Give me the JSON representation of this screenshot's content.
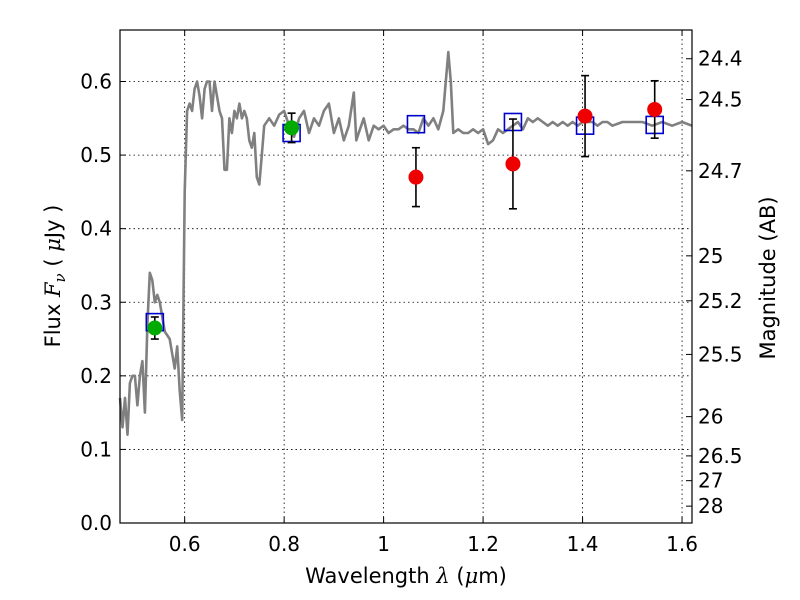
{
  "chart_data": {
    "type": "scatter",
    "xlabel_prefix": "Wavelength",
    "xlabel_symbol": "λ",
    "xlabel_unit_open": " (",
    "xlabel_unit_mu": "μ",
    "xlabel_unit_close": "m)",
    "ylabel_prefix": "Flux",
    "ylabel_symbol_F": "F",
    "ylabel_symbol_nu": "ν",
    "ylabel_unit_open": " ( ",
    "ylabel_unit_mu": "μ",
    "ylabel_unit_close": "Jy )",
    "y2label": "Magnitude (AB)",
    "xlim": [
      0.47,
      1.62
    ],
    "ylim": [
      0.0,
      0.67
    ],
    "x_ticks": [
      0.6,
      0.8,
      1.0,
      1.2,
      1.4,
      1.6
    ],
    "x_tick_labels": [
      "0.6",
      "0.8",
      "1",
      "1.2",
      "1.4",
      "1.6"
    ],
    "y_ticks": [
      0.0,
      0.1,
      0.2,
      0.3,
      0.4,
      0.5,
      0.6
    ],
    "y_tick_labels": [
      "0.0",
      "0.1",
      "0.2",
      "0.3",
      "0.4",
      "0.5",
      "0.6"
    ],
    "mag_ticks": [
      "24.4",
      "24.5",
      "24.7",
      "25",
      "25.2",
      "25.5",
      "26",
      "26.5",
      "27",
      "28"
    ],
    "grid": true,
    "colors": {
      "spectrum": "#808080",
      "model": "#0000cc",
      "observed_blue": "#00aa00",
      "observed_red": "#ee0000",
      "errorbar": "#000000"
    },
    "series": [
      {
        "name": "model spectrum",
        "kind": "line",
        "points": [
          [
            0.47,
            0.17
          ],
          [
            0.475,
            0.13
          ],
          [
            0.48,
            0.17
          ],
          [
            0.485,
            0.12
          ],
          [
            0.49,
            0.19
          ],
          [
            0.495,
            0.2
          ],
          [
            0.5,
            0.2
          ],
          [
            0.505,
            0.16
          ],
          [
            0.51,
            0.2
          ],
          [
            0.515,
            0.22
          ],
          [
            0.52,
            0.15
          ],
          [
            0.525,
            0.27
          ],
          [
            0.53,
            0.34
          ],
          [
            0.535,
            0.33
          ],
          [
            0.54,
            0.3
          ],
          [
            0.545,
            0.31
          ],
          [
            0.55,
            0.3
          ],
          [
            0.555,
            0.28
          ],
          [
            0.56,
            0.26
          ],
          [
            0.565,
            0.255
          ],
          [
            0.57,
            0.25
          ],
          [
            0.575,
            0.23
          ],
          [
            0.58,
            0.21
          ],
          [
            0.585,
            0.24
          ],
          [
            0.59,
            0.18
          ],
          [
            0.595,
            0.14
          ],
          [
            0.6,
            0.45
          ],
          [
            0.605,
            0.56
          ],
          [
            0.61,
            0.57
          ],
          [
            0.615,
            0.56
          ],
          [
            0.62,
            0.59
          ],
          [
            0.625,
            0.6
          ],
          [
            0.63,
            0.58
          ],
          [
            0.635,
            0.55
          ],
          [
            0.64,
            0.59
          ],
          [
            0.645,
            0.6
          ],
          [
            0.65,
            0.6
          ],
          [
            0.655,
            0.56
          ],
          [
            0.66,
            0.6
          ],
          [
            0.665,
            0.58
          ],
          [
            0.67,
            0.56
          ],
          [
            0.675,
            0.55
          ],
          [
            0.68,
            0.48
          ],
          [
            0.685,
            0.48
          ],
          [
            0.69,
            0.55
          ],
          [
            0.695,
            0.53
          ],
          [
            0.7,
            0.56
          ],
          [
            0.705,
            0.55
          ],
          [
            0.71,
            0.57
          ],
          [
            0.715,
            0.55
          ],
          [
            0.72,
            0.56
          ],
          [
            0.725,
            0.55
          ],
          [
            0.73,
            0.52
          ],
          [
            0.735,
            0.51
          ],
          [
            0.74,
            0.53
          ],
          [
            0.745,
            0.47
          ],
          [
            0.75,
            0.46
          ],
          [
            0.755,
            0.5
          ],
          [
            0.76,
            0.54
          ],
          [
            0.77,
            0.55
          ],
          [
            0.78,
            0.54
          ],
          [
            0.79,
            0.555
          ],
          [
            0.8,
            0.56
          ],
          [
            0.81,
            0.54
          ],
          [
            0.82,
            0.525
          ],
          [
            0.83,
            0.55
          ],
          [
            0.84,
            0.56
          ],
          [
            0.85,
            0.53
          ],
          [
            0.86,
            0.55
          ],
          [
            0.87,
            0.54
          ],
          [
            0.88,
            0.56
          ],
          [
            0.89,
            0.57
          ],
          [
            0.9,
            0.53
          ],
          [
            0.91,
            0.55
          ],
          [
            0.92,
            0.52
          ],
          [
            0.93,
            0.54
          ],
          [
            0.94,
            0.585
          ],
          [
            0.945,
            0.52
          ],
          [
            0.95,
            0.53
          ],
          [
            0.96,
            0.55
          ],
          [
            0.97,
            0.52
          ],
          [
            0.98,
            0.54
          ],
          [
            0.99,
            0.535
          ],
          [
            1.0,
            0.54
          ],
          [
            1.01,
            0.53
          ],
          [
            1.02,
            0.535
          ],
          [
            1.03,
            0.535
          ],
          [
            1.04,
            0.54
          ],
          [
            1.05,
            0.535
          ],
          [
            1.06,
            0.535
          ],
          [
            1.07,
            0.53
          ],
          [
            1.08,
            0.55
          ],
          [
            1.09,
            0.54
          ],
          [
            1.1,
            0.55
          ],
          [
            1.11,
            0.535
          ],
          [
            1.12,
            0.56
          ],
          [
            1.13,
            0.64
          ],
          [
            1.135,
            0.6
          ],
          [
            1.14,
            0.53
          ],
          [
            1.15,
            0.535
          ],
          [
            1.16,
            0.53
          ],
          [
            1.17,
            0.53
          ],
          [
            1.18,
            0.535
          ],
          [
            1.19,
            0.53
          ],
          [
            1.2,
            0.535
          ],
          [
            1.21,
            0.515
          ],
          [
            1.22,
            0.52
          ],
          [
            1.23,
            0.535
          ],
          [
            1.24,
            0.53
          ],
          [
            1.25,
            0.535
          ],
          [
            1.26,
            0.54
          ],
          [
            1.27,
            0.545
          ],
          [
            1.28,
            0.535
          ],
          [
            1.29,
            0.55
          ],
          [
            1.3,
            0.545
          ],
          [
            1.31,
            0.55
          ],
          [
            1.32,
            0.545
          ],
          [
            1.33,
            0.54
          ],
          [
            1.34,
            0.545
          ],
          [
            1.35,
            0.54
          ],
          [
            1.36,
            0.545
          ],
          [
            1.37,
            0.54
          ],
          [
            1.38,
            0.545
          ],
          [
            1.39,
            0.54
          ],
          [
            1.4,
            0.545
          ],
          [
            1.41,
            0.545
          ],
          [
            1.42,
            0.545
          ],
          [
            1.43,
            0.54
          ],
          [
            1.44,
            0.545
          ],
          [
            1.45,
            0.545
          ],
          [
            1.46,
            0.54
          ],
          [
            1.48,
            0.545
          ],
          [
            1.5,
            0.545
          ],
          [
            1.52,
            0.545
          ],
          [
            1.54,
            0.54
          ],
          [
            1.56,
            0.545
          ],
          [
            1.58,
            0.54
          ],
          [
            1.6,
            0.545
          ],
          [
            1.62,
            0.54
          ]
        ]
      },
      {
        "name": "synthetic photometry",
        "kind": "open-square",
        "points": [
          [
            0.54,
            0.273
          ],
          [
            0.815,
            0.53
          ],
          [
            1.065,
            0.542
          ],
          [
            1.26,
            0.545
          ],
          [
            1.405,
            0.54
          ],
          [
            1.545,
            0.541
          ]
        ]
      },
      {
        "name": "observed (green)",
        "kind": "filled-circle",
        "points": [
          {
            "x": 0.54,
            "y": 0.265,
            "yerr": 0.015
          },
          {
            "x": 0.815,
            "y": 0.537,
            "yerr": 0.02
          }
        ]
      },
      {
        "name": "observed (red)",
        "kind": "filled-circle",
        "points": [
          {
            "x": 1.065,
            "y": 0.47,
            "yerr": 0.04
          },
          {
            "x": 1.26,
            "y": 0.488,
            "yerr": 0.061
          },
          {
            "x": 1.405,
            "y": 0.553,
            "yerr": 0.055
          },
          {
            "x": 1.545,
            "y": 0.562,
            "yerr": 0.039
          }
        ]
      }
    ]
  }
}
